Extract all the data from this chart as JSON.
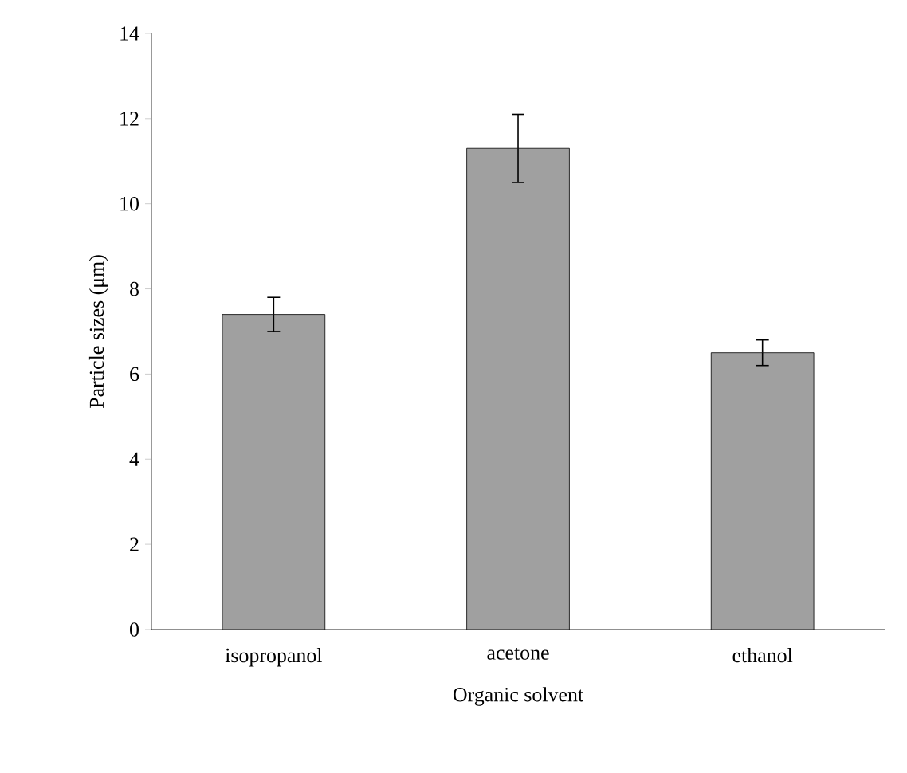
{
  "chart_data": {
    "type": "bar",
    "xlabel": "Organic solvent",
    "ylabel": "Particle sizes (μm)",
    "categories": [
      "isopropanol",
      "acetone",
      "ethanol"
    ],
    "values": [
      7.4,
      11.3,
      6.5
    ],
    "errors": [
      0.4,
      0.8,
      0.3
    ],
    "color": "#a0a0a0",
    "ylim": [
      0,
      14
    ],
    "yticks": [
      0,
      2,
      4,
      6,
      8,
      10,
      12,
      14
    ],
    "grid": false
  }
}
